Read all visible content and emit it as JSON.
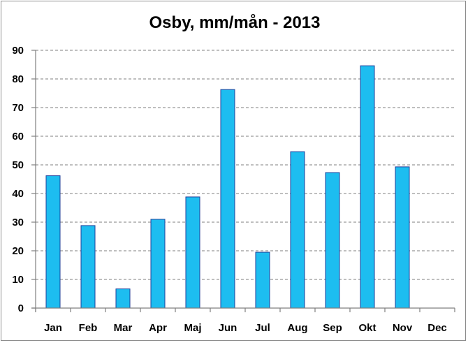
{
  "chart_data": {
    "type": "bar",
    "title": "Osby, mm/mån - 2013",
    "xlabel": "",
    "ylabel": "",
    "categories": [
      "Jan",
      "Feb",
      "Mar",
      "Apr",
      "Maj",
      "Jun",
      "Jul",
      "Aug",
      "Sep",
      "Okt",
      "Nov",
      "Dec"
    ],
    "values": [
      46.2,
      28.8,
      6.7,
      31.0,
      38.8,
      76.3,
      19.5,
      54.6,
      47.3,
      84.6,
      49.3,
      null
    ],
    "ylim": [
      0,
      90
    ],
    "yticks": [
      0,
      10,
      20,
      30,
      40,
      50,
      60,
      70,
      80,
      90
    ],
    "grid": true,
    "legend": "none",
    "colors": {
      "bar_fill": "#1dbdf0",
      "bar_stroke": "#1f3f9a",
      "grid": "#7f7f7f"
    }
  }
}
